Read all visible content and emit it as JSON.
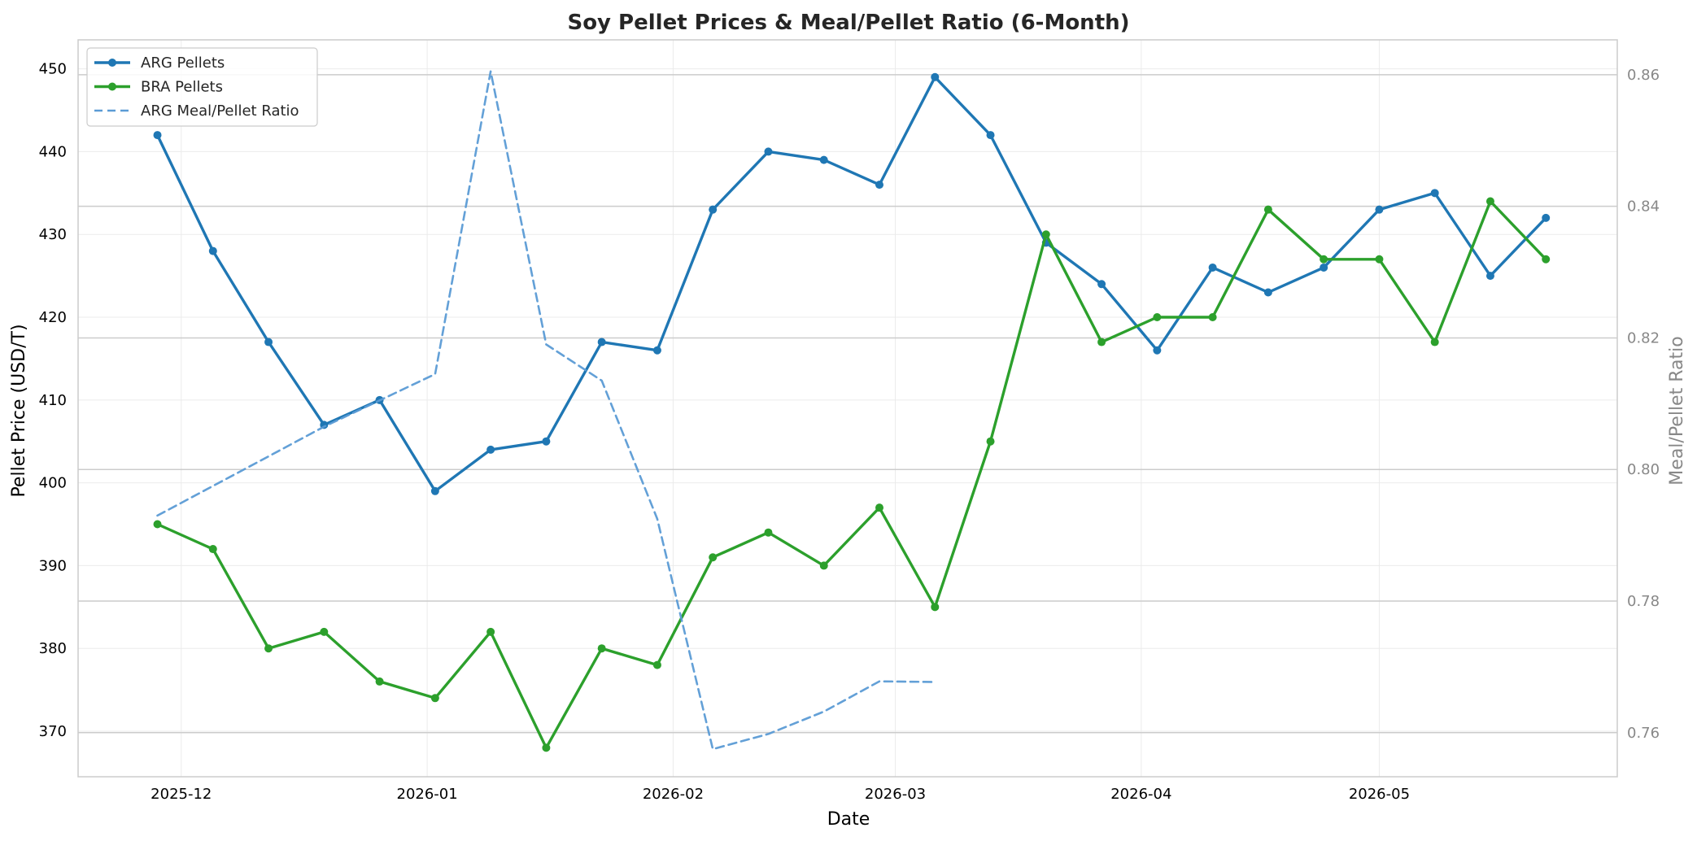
{
  "chart_data": {
    "type": "line",
    "title": "Soy Pellet Prices & Meal/Pellet Ratio (6-Month)",
    "xlabel": "Date",
    "ylabel": "Pellet Price (USD/T)",
    "ylabel_right": "Meal/Pellet Ratio",
    "x_ticks": [
      "2025-12",
      "2026-01",
      "2026-02",
      "2026-03",
      "2026-04",
      "2026-05"
    ],
    "x_tick_dates": [
      "2025-12-01",
      "2026-01-01",
      "2026-02-01",
      "2026-03-01",
      "2026-04-01",
      "2026-05-01"
    ],
    "x_range": [
      "2025-11-18",
      "2026-05-31"
    ],
    "ylim": [
      364.5,
      453.5
    ],
    "y_ticks": [
      370,
      380,
      390,
      400,
      410,
      420,
      430,
      440,
      450
    ],
    "ylim_right": [
      0.7533,
      0.8653
    ],
    "y_ticks_right": [
      0.76,
      0.78,
      0.8,
      0.82,
      0.84,
      0.86
    ],
    "grid": true,
    "legend_position": "top-left",
    "x": [
      "2025-11-28",
      "2025-12-05",
      "2025-12-12",
      "2025-12-19",
      "2025-12-26",
      "2026-01-02",
      "2026-01-09",
      "2026-01-16",
      "2026-01-23",
      "2026-01-30",
      "2026-02-06",
      "2026-02-13",
      "2026-02-20",
      "2026-02-27",
      "2026-03-06",
      "2026-03-13",
      "2026-03-20",
      "2026-03-27",
      "2026-04-03",
      "2026-04-10",
      "2026-04-17",
      "2026-04-24",
      "2026-05-01",
      "2026-05-08",
      "2026-05-15",
      "2026-05-22"
    ],
    "series": [
      {
        "name": "ARG Pellets",
        "axis": "left",
        "style": "solid",
        "markers": true,
        "color": "#1f77b4",
        "values": [
          442,
          428,
          417,
          407,
          410,
          399,
          404,
          405,
          417,
          416,
          433,
          440,
          439,
          436,
          449,
          442,
          429,
          424,
          416,
          426,
          423,
          426,
          433,
          435,
          425,
          432
        ]
      },
      {
        "name": "BRA Pellets",
        "axis": "left",
        "style": "solid",
        "markers": true,
        "color": "#2ca02c",
        "values": [
          395,
          392,
          380,
          382,
          376,
          374,
          382,
          368,
          380,
          378,
          391,
          394,
          390,
          397,
          385,
          405,
          430,
          417,
          420,
          420,
          433,
          427,
          427,
          417,
          434,
          427
        ]
      },
      {
        "name": "ARG Meal/Pellet Ratio",
        "axis": "right",
        "style": "dashed",
        "markers": false,
        "color": "#5b9bd5",
        "values": [
          0.793,
          0.7975,
          0.802,
          0.8065,
          0.8105,
          0.8145,
          0.8605,
          0.819,
          0.8135,
          0.7925,
          0.7575,
          0.7598,
          0.7632,
          0.7678,
          0.7677,
          null,
          null,
          null,
          null,
          null,
          null,
          null,
          null,
          null,
          null,
          null
        ]
      }
    ]
  }
}
